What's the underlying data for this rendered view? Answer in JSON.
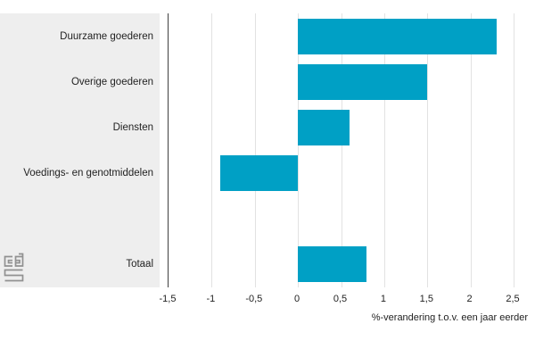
{
  "chart_data": {
    "type": "bar",
    "orientation": "horizontal",
    "title": "",
    "categories": [
      "Duurzame goederen",
      "Overige goederen",
      "Diensten",
      "Voedings- en genotmiddelen",
      "Totaal"
    ],
    "values": [
      2.3,
      1.5,
      0.6,
      -0.9,
      0.8
    ],
    "slots": [
      0,
      1,
      2,
      3,
      5
    ],
    "slot_count": 6,
    "xlabel": "%-verandering t.o.v. een jaar eerder",
    "ylabel": "",
    "xlim": [
      -1.5,
      2.5
    ],
    "grid": true,
    "legend": "none",
    "ticks": [
      {
        "v": -1.5,
        "label": "-1,5"
      },
      {
        "v": -1.0,
        "label": "-1"
      },
      {
        "v": -0.5,
        "label": "-0,5"
      },
      {
        "v": 0.0,
        "label": "0"
      },
      {
        "v": 0.5,
        "label": "0,5"
      },
      {
        "v": 1.0,
        "label": "1"
      },
      {
        "v": 1.5,
        "label": "1,5"
      },
      {
        "v": 2.0,
        "label": "2"
      },
      {
        "v": 2.5,
        "label": "2,5"
      }
    ]
  },
  "branding": {
    "logo": "cbs-logo"
  },
  "colors": {
    "bar": "#00a0c5",
    "panel": "#eeeeee",
    "grid": "#e2e2e2",
    "axis": "#3f3f3f",
    "text": "#222222",
    "logo": "#919191",
    "bg": "#ffffff"
  }
}
